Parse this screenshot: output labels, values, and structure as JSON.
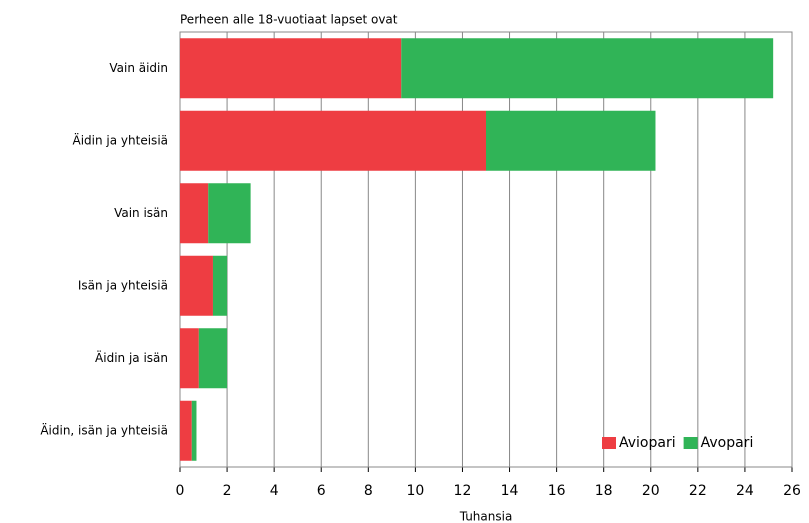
{
  "chart_data": {
    "type": "stacked-barh",
    "subtitle": "Perheen alle 18-vuotiaat lapset ovat",
    "xlabel": "Tuhansia",
    "categories": [
      "Vain äidin",
      "Äidin ja yhteisiä",
      "Vain isän",
      "Isän ja yhteisiä",
      "Äidin ja isän",
      "Äidin, isän ja yhteisiä"
    ],
    "series": [
      {
        "name": "Aviopari",
        "color": "#ee3d42",
        "values": [
          9.4,
          13.0,
          1.2,
          1.4,
          0.8,
          0.5
        ]
      },
      {
        "name": "Avopari",
        "color": "#30b457",
        "values": [
          15.8,
          7.2,
          1.8,
          0.6,
          1.2,
          0.2
        ]
      }
    ],
    "xlim": [
      0,
      26
    ],
    "xticks": [
      0,
      2,
      4,
      6,
      8,
      10,
      12,
      14,
      16,
      18,
      20,
      22,
      24,
      26
    ],
    "grid": true,
    "legend": "lower right"
  }
}
